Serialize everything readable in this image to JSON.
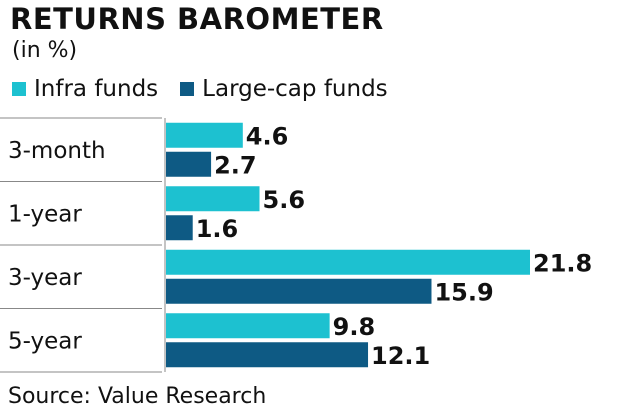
{
  "title": "RETURNS BAROMETER",
  "subtitle": "(in %)",
  "source": "Source: Value Research",
  "colors": {
    "infra": "#1DC1D0",
    "largecap": "#0E5A84",
    "text": "#111111",
    "grid": "#888888"
  },
  "chart_data": {
    "type": "bar",
    "orientation": "horizontal",
    "categories": [
      "3-month",
      "1-year",
      "3-year",
      "5-year"
    ],
    "series": [
      {
        "name": "Infra funds",
        "values": [
          4.6,
          5.6,
          21.8,
          9.8
        ]
      },
      {
        "name": "Large-cap funds",
        "values": [
          2.7,
          1.6,
          15.9,
          12.1
        ]
      }
    ],
    "value_labels": {
      "infra": [
        "4.6",
        "5.6",
        "21.8",
        "9.8"
      ],
      "largecap": [
        "2.7",
        "1.6",
        "15.9",
        "12.1"
      ]
    },
    "title": "RETURNS BAROMETER",
    "ylabel": "(in %)",
    "xlim": [
      0,
      21.8
    ],
    "grid": false,
    "legend": "top-left"
  }
}
